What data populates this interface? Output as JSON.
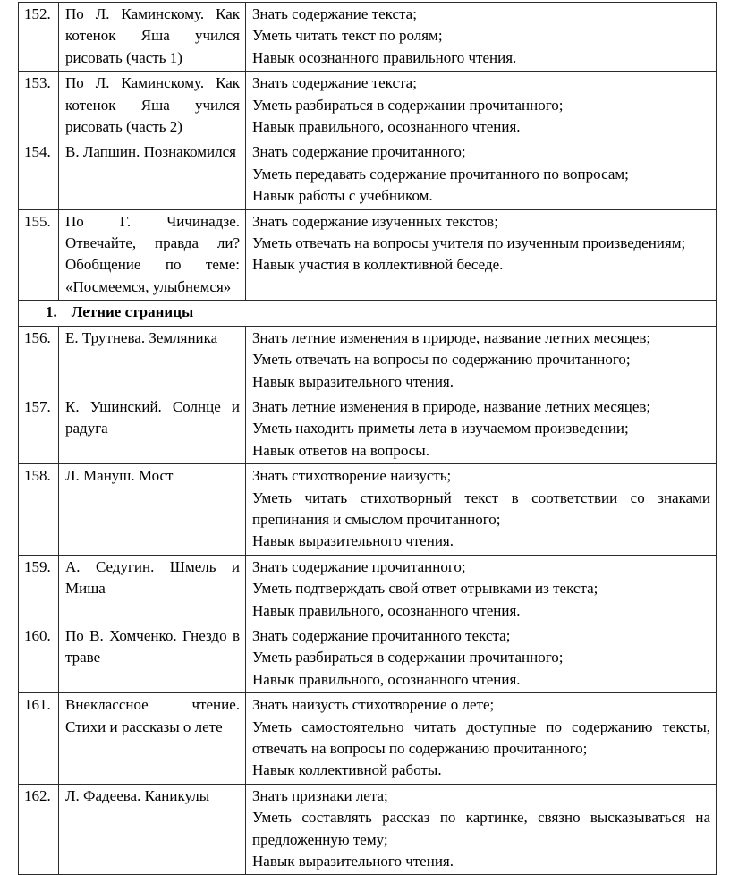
{
  "colors": {
    "border": "#2b2b2b",
    "text": "#000000",
    "background": "#ffffff"
  },
  "document": {
    "table": {
      "rows": [
        {
          "type": "lesson",
          "num": "152.",
          "topic": "По Л. Каминскому. Как котенок Яша учился рисовать (часть 1)",
          "skills": [
            "Знать содержание текста;",
            "Уметь читать текст по ролям;",
            "Навык осознанного правильного чтения."
          ]
        },
        {
          "type": "lesson",
          "num": "153.",
          "topic": "По Л. Каминскому. Как котенок Яша учился рисовать (часть 2)",
          "skills": [
            "Знать содержание текста;",
            "Уметь разбираться в содержании прочитанного;",
            "Навык правильного, осознанного чтения."
          ]
        },
        {
          "type": "lesson",
          "num": "154.",
          "topic": "В. Лапшин. Познакомился",
          "skills": [
            "Знать содержание прочитанного;",
            "Уметь передавать содержание прочитанного по вопросам;",
            "Навык работы с учебником."
          ]
        },
        {
          "type": "lesson",
          "num": "155.",
          "topic": "По Г. Чичинадзе. Отвечайте, правда ли? Обобщение по теме: «Посмеемся, улыбнемся»",
          "skills": [
            "Знать содержание изученных текстов;",
            "Уметь отвечать на вопросы учителя по изученным произведениям;",
            "Навык участия в коллективной беседе."
          ]
        },
        {
          "type": "section",
          "num": "1.",
          "title": "Летние страницы"
        },
        {
          "type": "lesson",
          "num": "156.",
          "topic": "Е. Трутнева. Земляника",
          "skills": [
            "Знать летние изменения в природе, название летних месяцев;",
            "Уметь отвечать на вопросы по содержанию прочитанного;",
            "Навык выразительного чтения."
          ]
        },
        {
          "type": "lesson",
          "num": "157.",
          "topic": "К. Ушинский. Солнце и радуга",
          "skills": [
            "Знать летние изменения в природе, название летних месяцев;",
            "Уметь находить приметы лета в изучаемом произведении;",
            "Навык ответов на вопросы."
          ]
        },
        {
          "type": "lesson",
          "num": "158.",
          "topic": "Л. Мануш. Мост",
          "skills": [
            "Знать стихотворение наизусть;",
            "Уметь читать стихотворный текст в соответствии со знаками препинания и смыслом прочитанного;",
            "Навык выразительного чтения."
          ]
        },
        {
          "type": "lesson",
          "num": "159.",
          "topic": "А. Седугин. Шмель и Миша",
          "skills": [
            "Знать содержание прочитанного;",
            "Уметь подтверждать свой ответ отрывками из текста;",
            "Навык правильного, осознанного чтения."
          ]
        },
        {
          "type": "lesson",
          "num": "160.",
          "topic": "По В. Хомченко. Гнездо в траве",
          "skills": [
            "Знать содержание прочитанного текста;",
            "Уметь разбираться в содержании прочитанного;",
            "Навык правильного, осознанного чтения."
          ]
        },
        {
          "type": "lesson",
          "num": "161.",
          "topic": "Внеклассное чтение. Стихи и рассказы о лете",
          "skills": [
            "Знать наизусть стихотворение о лете;",
            "Уметь самостоятельно читать доступные по содержанию тексты, отвечать на вопросы по содержанию прочитанного;",
            "Навык коллективной работы."
          ]
        },
        {
          "type": "lesson",
          "num": "162.",
          "topic": "Л. Фадеева. Каникулы",
          "skills": [
            "Знать признаки лета;",
            "Уметь составлять рассказ по картинке, связно высказываться на предложенную тему;",
            "Навык выразительного чтения."
          ]
        }
      ]
    }
  }
}
